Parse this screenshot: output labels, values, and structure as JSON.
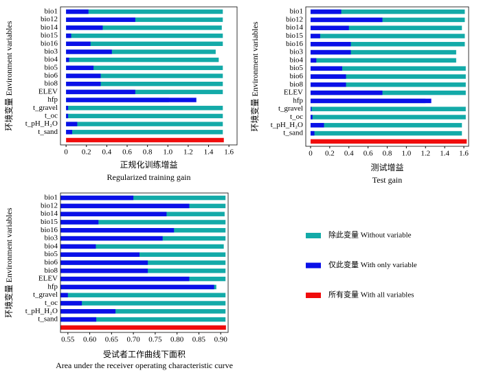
{
  "chart_data": [
    {
      "type": "jackknife-bar",
      "y_label": "环境变量 Environment variables",
      "x_label_cn": "正规化训练增益",
      "x_label_en": "Regularized training gain",
      "categories": [
        "bio1",
        "bio12",
        "bio14",
        "bio15",
        "bio16",
        "bio3",
        "bio4",
        "bio5",
        "bio6",
        "bio8",
        "ELEV",
        "hfp",
        "t_gravel",
        "t_oc",
        "t_pH_H₂O",
        "t_sand"
      ],
      "series": [
        {
          "values": [
            1.54,
            1.54,
            1.53,
            1.54,
            1.54,
            1.47,
            1.5,
            1.54,
            1.54,
            1.54,
            1.54,
            1.01,
            1.54,
            1.54,
            1.54,
            1.54
          ]
        },
        {
          "values": [
            0.22,
            0.68,
            0.36,
            0.05,
            0.24,
            0.45,
            0.03,
            0.27,
            0.34,
            0.34,
            0.68,
            1.28,
            0.02,
            0.02,
            0.11,
            0.06
          ]
        }
      ],
      "with_all": 1.55,
      "xlim": [
        -0.055,
        1.68
      ],
      "xticks": [
        0,
        0.2,
        0.4,
        0.6,
        0.8,
        {
          "value": 1,
          "label": "1.0"
        },
        1.2,
        1.4,
        1.6
      ]
    },
    {
      "type": "jackknife-bar",
      "y_label": "环境变量 Environment variables",
      "x_label_cn": "测试增益",
      "x_label_en": "Test gain",
      "categories": [
        "bio1",
        "bio12",
        "bio14",
        "bio15",
        "bio16",
        "bio3",
        "bio4",
        "bio5",
        "bio6",
        "bio8",
        "ELEV",
        "hfp",
        "t_gravel",
        "t_oc",
        "t_pH_H₂O",
        "t_sand"
      ],
      "series": [
        {
          "values": [
            1.61,
            1.61,
            1.58,
            1.61,
            1.61,
            1.52,
            1.52,
            1.62,
            1.62,
            1.62,
            1.62,
            1.2,
            1.62,
            1.62,
            1.58,
            1.58
          ]
        },
        {
          "values": [
            0.32,
            0.75,
            0.4,
            0.1,
            0.42,
            0.42,
            0.06,
            0.33,
            0.37,
            0.37,
            0.75,
            1.26,
            0.01,
            0.02,
            0.14,
            0.04
          ]
        }
      ],
      "with_all": 1.63,
      "xlim": [
        -0.05,
        1.65
      ],
      "xticks": [
        0,
        0.2,
        0.4,
        0.6,
        0.8,
        {
          "value": 1,
          "label": "1.0"
        },
        1.2,
        1.4,
        1.6
      ]
    },
    {
      "type": "jackknife-bar",
      "y_label": "环境变量 Environment variables",
      "x_label_cn": "受试者工作曲线下面积",
      "x_label_en": "Area under the receiver operating characteristic curve",
      "categories": [
        "bio1",
        "bio12",
        "bio14",
        "bio15",
        "bio16",
        "bio3",
        "bio4",
        "bio5",
        "bio6",
        "bio8",
        "ELEV",
        "hfp",
        "t_gravel",
        "t_oc",
        "t_pH_H₂O",
        "t_sand"
      ],
      "series": [
        {
          "values": [
            0.911,
            0.911,
            0.909,
            0.911,
            0.911,
            0.911,
            0.907,
            0.911,
            0.911,
            0.911,
            0.911,
            0.89,
            0.911,
            0.911,
            0.911,
            0.911
          ]
        },
        {
          "values": [
            0.7,
            0.828,
            0.776,
            0.62,
            0.793,
            0.767,
            0.614,
            0.714,
            0.733,
            0.733,
            0.828,
            0.885,
            0.55,
            0.582,
            0.659,
            0.615
          ]
        }
      ],
      "with_all": 0.912,
      "xlim": [
        0.533,
        0.917
      ],
      "xticks": [
        0.55,
        {
          "value": 0.6,
          "label": "0.60"
        },
        0.65,
        {
          "value": 0.7,
          "label": "0.70"
        },
        0.75,
        {
          "value": 0.8,
          "label": "0.80"
        },
        0.85,
        {
          "value": 0.9,
          "label": "0.90"
        }
      ]
    }
  ],
  "legend": [
    {
      "name": "除此变量 Without variable",
      "color": "#13aaa8"
    },
    {
      "name": "仅此变量 With only variable",
      "color": "#0a10e8"
    },
    {
      "name": "所有变量 With all variables",
      "color": "#f00c0c"
    }
  ]
}
